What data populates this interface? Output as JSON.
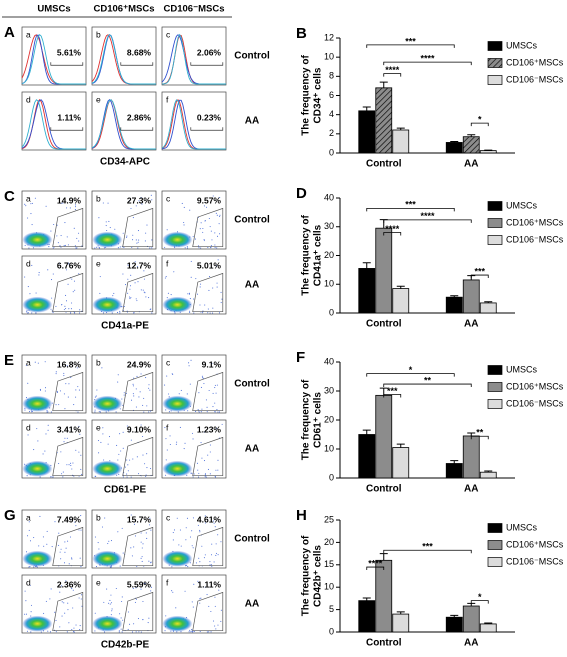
{
  "column_headers": [
    "UMSCs",
    "CD106⁺MSCs",
    "CD106⁻MSCs"
  ],
  "row_labels": [
    "Control",
    "AA"
  ],
  "flow_panels": [
    {
      "letter": "A",
      "kind": "histogram",
      "axis_label": "CD34-APC",
      "plots": [
        {
          "letter": "a",
          "percent": "5.61%"
        },
        {
          "letter": "b",
          "percent": "8.68%"
        },
        {
          "letter": "c",
          "percent": "2.06%"
        },
        {
          "letter": "d",
          "percent": "1.11%"
        },
        {
          "letter": "e",
          "percent": "2.86%"
        },
        {
          "letter": "f",
          "percent": "0.23%"
        }
      ]
    },
    {
      "letter": "C",
      "kind": "density",
      "axis_label": "CD41a-PE",
      "plots": [
        {
          "letter": "a",
          "percent": "14.9%"
        },
        {
          "letter": "b",
          "percent": "27.3%"
        },
        {
          "letter": "c",
          "percent": "9.57%"
        },
        {
          "letter": "d",
          "percent": "6.76%"
        },
        {
          "letter": "e",
          "percent": "12.7%"
        },
        {
          "letter": "f",
          "percent": "5.01%"
        }
      ]
    },
    {
      "letter": "E",
      "kind": "density",
      "axis_label": "CD61-PE",
      "plots": [
        {
          "letter": "a",
          "percent": "16.8%"
        },
        {
          "letter": "b",
          "percent": "24.9%"
        },
        {
          "letter": "c",
          "percent": "9.1%"
        },
        {
          "letter": "d",
          "percent": "3.41%"
        },
        {
          "letter": "e",
          "percent": "9.10%"
        },
        {
          "letter": "f",
          "percent": "1.23%"
        }
      ]
    },
    {
      "letter": "G",
      "kind": "density",
      "axis_label": "CD42b-PE",
      "plots": [
        {
          "letter": "a",
          "percent": "7.49%"
        },
        {
          "letter": "b",
          "percent": "15.7%"
        },
        {
          "letter": "c",
          "percent": "4.61%"
        },
        {
          "letter": "d",
          "percent": "2.36%"
        },
        {
          "letter": "e",
          "percent": "5.59%"
        },
        {
          "letter": "f",
          "percent": "1.11%"
        }
      ]
    }
  ],
  "chart_data": [
    {
      "type": "bar",
      "panel": "B",
      "ylabel": [
        "The frequency of",
        "CD34⁺ cells"
      ],
      "categories": [
        "Control",
        "AA"
      ],
      "ylim": [
        0,
        12
      ],
      "yticks": [
        0,
        2,
        4,
        6,
        8,
        10,
        12
      ],
      "series": [
        {
          "name": "UMSCs",
          "color": "#000000",
          "values": [
            4.4,
            1.1
          ],
          "errors": [
            0.4,
            0.1
          ]
        },
        {
          "name": "CD106⁺MSCs",
          "color": "#8c8c8c",
          "pattern": "hatch",
          "values": [
            6.8,
            1.7
          ],
          "errors": [
            0.6,
            0.2
          ]
        },
        {
          "name": "CD106⁻MSCs",
          "color": "#dcdcdc",
          "values": [
            2.4,
            0.25
          ],
          "errors": [
            0.2,
            0.05
          ]
        }
      ],
      "annotations": [
        "***",
        "****",
        "****",
        "*"
      ]
    },
    {
      "type": "bar",
      "panel": "D",
      "ylabel": [
        "The frequency of",
        "CD41a⁺ cells"
      ],
      "categories": [
        "Control",
        "AA"
      ],
      "ylim": [
        0,
        40
      ],
      "yticks": [
        0,
        10,
        20,
        30,
        40
      ],
      "series": [
        {
          "name": "UMSCs",
          "color": "#000000",
          "values": [
            15.5,
            5.5
          ],
          "errors": [
            2,
            0.5
          ]
        },
        {
          "name": "CD106⁺MSCs",
          "color": "#8c8c8c",
          "values": [
            29.5,
            11.5
          ],
          "errors": [
            3,
            1.5
          ]
        },
        {
          "name": "CD106⁻MSCs",
          "color": "#dcdcdc",
          "values": [
            8.5,
            3.5
          ],
          "errors": [
            0.8,
            0.4
          ]
        }
      ],
      "annotations": [
        "***",
        "****",
        "****",
        "***"
      ]
    },
    {
      "type": "bar",
      "panel": "F",
      "ylabel": [
        "The frequency of",
        "CD61⁺ cells"
      ],
      "categories": [
        "Control",
        "AA"
      ],
      "ylim": [
        0,
        40
      ],
      "yticks": [
        0,
        10,
        20,
        30,
        40
      ],
      "series": [
        {
          "name": "UMSCs",
          "color": "#000000",
          "values": [
            15,
            5
          ],
          "errors": [
            1.5,
            1
          ]
        },
        {
          "name": "CD106⁺MSCs",
          "color": "#8c8c8c",
          "values": [
            28.5,
            14.5
          ],
          "errors": [
            2.5,
            1
          ]
        },
        {
          "name": "CD106⁻MSCs",
          "color": "#dcdcdc",
          "values": [
            10.5,
            2
          ],
          "errors": [
            1.2,
            0.4
          ]
        }
      ],
      "annotations": [
        "*",
        "**",
        "***",
        "**"
      ]
    },
    {
      "type": "bar",
      "panel": "H",
      "ylabel": [
        "The frequency of",
        "CD42b⁺ cells"
      ],
      "categories": [
        "Control",
        "AA"
      ],
      "ylim": [
        0,
        25
      ],
      "yticks": [
        0,
        5,
        10,
        15,
        20,
        25
      ],
      "series": [
        {
          "name": "UMSCs",
          "color": "#000000",
          "values": [
            7,
            3.3
          ],
          "errors": [
            0.6,
            0.4
          ]
        },
        {
          "name": "CD106⁺MSCs",
          "color": "#8c8c8c",
          "values": [
            16,
            5.8
          ],
          "errors": [
            1.5,
            0.6
          ]
        },
        {
          "name": "CD106⁻MSCs",
          "color": "#dcdcdc",
          "values": [
            4,
            1.8
          ],
          "errors": [
            0.5,
            0.2
          ]
        }
      ],
      "annotations": [
        "***",
        "****",
        "*"
      ]
    }
  ]
}
